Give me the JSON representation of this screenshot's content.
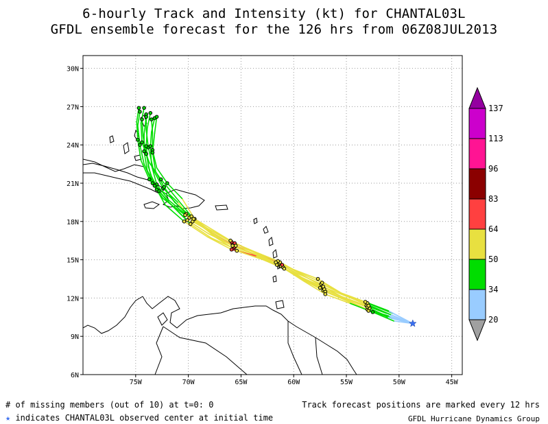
{
  "title": {
    "line1": "6-hourly Track and Intensity (kt) for CHANTAL03L",
    "line2": "GFDL ensemble forecast for the 126 hrs from 06Z08JUL2013"
  },
  "map": {
    "lon_range": [
      -80,
      -44
    ],
    "lat_range": [
      6,
      31
    ],
    "lon_ticks": [
      {
        "lon": -75,
        "label": "75W"
      },
      {
        "lon": -70,
        "label": "70W"
      },
      {
        "lon": -65,
        "label": "65W"
      },
      {
        "lon": -60,
        "label": "60W"
      },
      {
        "lon": -55,
        "label": "55W"
      },
      {
        "lon": -50,
        "label": "50W"
      },
      {
        "lon": -45,
        "label": "45W"
      }
    ],
    "lat_ticks": [
      {
        "lat": 30,
        "label": "30N"
      },
      {
        "lat": 27,
        "label": "27N"
      },
      {
        "lat": 24,
        "label": "24N"
      },
      {
        "lat": 21,
        "label": "21N"
      },
      {
        "lat": 18,
        "label": "18N"
      },
      {
        "lat": 15,
        "label": "15N"
      },
      {
        "lat": 12,
        "label": "12N"
      },
      {
        "lat": 9,
        "label": "9N"
      },
      {
        "lat": 6,
        "label": "6N"
      }
    ],
    "grid": "dotted",
    "observed_center": {
      "lon": -48.7,
      "lat": 10.0,
      "marker": "blue-star-icon"
    }
  },
  "colorbar": {
    "placement": "right",
    "levels": [
      {
        "label": "20",
        "color": "#a0a0a0"
      },
      {
        "label": "34",
        "color": "#99ccff"
      },
      {
        "label": "50",
        "color": "#00dd00"
      },
      {
        "label": "64",
        "color": "#e8e040"
      },
      {
        "label": "83",
        "color": "#ff4040"
      },
      {
        "label": "96",
        "color": "#8b0000"
      },
      {
        "label": "113",
        "color": "#ff1493"
      },
      {
        "label": "137",
        "color": "#cc00cc"
      },
      {
        "label": "",
        "color": "#9400a0"
      }
    ]
  },
  "tracks": [
    {
      "member": 1,
      "points": [
        [
          -48.7,
          10.0,
          25
        ],
        [
          -50.8,
          10.7,
          40
        ],
        [
          -53.0,
          11.5,
          50
        ],
        [
          -55.2,
          12.2,
          55
        ],
        [
          -57.3,
          12.9,
          55
        ],
        [
          -59.5,
          13.7,
          55
        ],
        [
          -61.3,
          14.5,
          60
        ],
        [
          -63.3,
          15.2,
          60
        ],
        [
          -65.7,
          15.9,
          65
        ],
        [
          -67.8,
          16.7,
          55
        ],
        [
          -69.8,
          17.8,
          50
        ],
        [
          -71.5,
          19.2,
          45
        ],
        [
          -72.8,
          20.4,
          45
        ],
        [
          -73.6,
          21.7,
          45
        ],
        [
          -74.0,
          23.3,
          45
        ],
        [
          -74.3,
          24.7,
          45
        ],
        [
          -74.4,
          26.0,
          40
        ]
      ]
    },
    {
      "member": 2,
      "points": [
        [
          -48.7,
          10.0,
          25
        ],
        [
          -51.0,
          10.6,
          40
        ],
        [
          -53.0,
          11.1,
          50
        ],
        [
          -55.1,
          11.9,
          55
        ],
        [
          -57.2,
          12.6,
          60
        ],
        [
          -59.3,
          13.5,
          60
        ],
        [
          -61.2,
          14.5,
          60
        ],
        [
          -63.5,
          15.3,
          65
        ],
        [
          -65.8,
          16.2,
          70
        ],
        [
          -67.9,
          17.2,
          60
        ],
        [
          -69.6,
          18.0,
          55
        ],
        [
          -71.0,
          19.5,
          50
        ],
        [
          -72.4,
          20.6,
          45
        ],
        [
          -73.3,
          22.0,
          45
        ],
        [
          -73.8,
          23.8,
          45
        ],
        [
          -74.0,
          25.2,
          40
        ],
        [
          -74.0,
          26.4,
          35
        ]
      ]
    },
    {
      "member": 3,
      "points": [
        [
          -48.7,
          10.0,
          25
        ],
        [
          -50.9,
          10.5,
          40
        ],
        [
          -52.9,
          11.0,
          50
        ],
        [
          -55.0,
          11.8,
          55
        ],
        [
          -57.0,
          12.5,
          55
        ],
        [
          -59.1,
          13.5,
          55
        ],
        [
          -61.0,
          14.4,
          60
        ],
        [
          -63.0,
          15.2,
          60
        ],
        [
          -65.6,
          16.0,
          65
        ],
        [
          -67.7,
          17.0,
          55
        ],
        [
          -69.9,
          18.3,
          50
        ],
        [
          -71.9,
          19.7,
          45
        ],
        [
          -73.0,
          20.9,
          45
        ],
        [
          -73.5,
          22.4,
          45
        ],
        [
          -73.6,
          23.9,
          45
        ],
        [
          -73.5,
          25.0,
          40
        ],
        [
          -73.2,
          26.1,
          35
        ]
      ]
    },
    {
      "member": 4,
      "points": [
        [
          -48.7,
          10.0,
          25
        ],
        [
          -50.6,
          10.8,
          40
        ],
        [
          -53.0,
          11.6,
          50
        ],
        [
          -55.3,
          12.3,
          50
        ],
        [
          -57.4,
          13.1,
          50
        ],
        [
          -59.6,
          13.9,
          50
        ],
        [
          -61.4,
          14.7,
          55
        ],
        [
          -63.5,
          15.4,
          60
        ],
        [
          -65.8,
          16.1,
          60
        ],
        [
          -68.0,
          17.0,
          55
        ],
        [
          -70.1,
          18.1,
          50
        ],
        [
          -72.0,
          19.6,
          45
        ],
        [
          -73.4,
          21.0,
          45
        ],
        [
          -74.2,
          22.5,
          45
        ],
        [
          -74.6,
          24.0,
          40
        ],
        [
          -74.8,
          25.5,
          40
        ],
        [
          -74.6,
          26.6,
          35
        ]
      ]
    },
    {
      "member": 5,
      "points": [
        [
          -48.7,
          10.0,
          25
        ],
        [
          -51.2,
          10.8,
          40
        ],
        [
          -53.1,
          11.4,
          50
        ],
        [
          -55.4,
          12.1,
          55
        ],
        [
          -57.5,
          12.8,
          55
        ],
        [
          -59.8,
          13.8,
          60
        ],
        [
          -61.6,
          14.6,
          60
        ],
        [
          -63.6,
          15.3,
          65
        ],
        [
          -65.9,
          15.8,
          65
        ],
        [
          -68.2,
          16.8,
          55
        ],
        [
          -70.4,
          18.0,
          50
        ],
        [
          -72.2,
          19.3,
          45
        ],
        [
          -73.0,
          20.5,
          45
        ],
        [
          -73.9,
          22.0,
          45
        ],
        [
          -74.2,
          23.5,
          45
        ],
        [
          -74.2,
          24.8,
          40
        ],
        [
          -74.0,
          26.2,
          35
        ]
      ]
    },
    {
      "member": 6,
      "points": [
        [
          -48.7,
          10.0,
          25
        ],
        [
          -50.7,
          10.4,
          40
        ],
        [
          -52.8,
          11.2,
          50
        ],
        [
          -54.9,
          11.9,
          55
        ],
        [
          -57.1,
          12.7,
          60
        ],
        [
          -59.2,
          13.6,
          60
        ],
        [
          -61.1,
          14.6,
          65
        ],
        [
          -63.2,
          15.4,
          65
        ],
        [
          -65.6,
          16.3,
          65
        ],
        [
          -67.6,
          17.3,
          60
        ],
        [
          -69.4,
          18.2,
          55
        ],
        [
          -70.6,
          19.8,
          50
        ],
        [
          -72.0,
          21.0,
          45
        ],
        [
          -73.0,
          22.2,
          45
        ],
        [
          -73.4,
          23.6,
          45
        ],
        [
          -73.4,
          25.0,
          40
        ],
        [
          -73.5,
          26.0,
          35
        ]
      ]
    },
    {
      "member": 7,
      "points": [
        [
          -48.7,
          10.0,
          25
        ],
        [
          -51.1,
          10.5,
          40
        ],
        [
          -53.0,
          11.3,
          50
        ],
        [
          -55.2,
          12.0,
          55
        ],
        [
          -57.2,
          12.9,
          55
        ],
        [
          -59.4,
          13.9,
          55
        ],
        [
          -61.3,
          14.8,
          60
        ],
        [
          -63.4,
          15.5,
          60
        ],
        [
          -65.5,
          16.1,
          60
        ],
        [
          -67.7,
          17.1,
          55
        ],
        [
          -69.7,
          18.4,
          50
        ],
        [
          -71.2,
          19.9,
          45
        ],
        [
          -72.6,
          21.3,
          45
        ],
        [
          -73.7,
          22.6,
          45
        ],
        [
          -74.4,
          24.2,
          40
        ],
        [
          -74.5,
          25.7,
          40
        ],
        [
          -74.2,
          26.9,
          35
        ]
      ]
    },
    {
      "member": 8,
      "points": [
        [
          -48.7,
          10.0,
          25
        ],
        [
          -50.8,
          10.7,
          40
        ],
        [
          -52.9,
          11.4,
          50
        ],
        [
          -55.1,
          12.2,
          50
        ],
        [
          -57.3,
          13.2,
          55
        ],
        [
          -59.5,
          14.0,
          55
        ],
        [
          -61.5,
          14.9,
          60
        ],
        [
          -63.6,
          15.6,
          60
        ],
        [
          -65.9,
          16.4,
          65
        ],
        [
          -68.1,
          17.4,
          55
        ],
        [
          -70.2,
          18.6,
          50
        ],
        [
          -71.7,
          19.9,
          45
        ],
        [
          -73.2,
          20.8,
          45
        ],
        [
          -73.8,
          22.3,
          45
        ],
        [
          -74.0,
          23.9,
          45
        ],
        [
          -73.9,
          25.3,
          40
        ],
        [
          -73.6,
          26.5,
          35
        ]
      ]
    },
    {
      "member": 9,
      "points": [
        [
          -48.7,
          10.0,
          25
        ],
        [
          -50.5,
          10.2,
          30
        ],
        [
          -52.5,
          10.9,
          45
        ],
        [
          -54.7,
          11.6,
          50
        ],
        [
          -57.0,
          12.3,
          55
        ],
        [
          -59.0,
          13.3,
          55
        ],
        [
          -60.9,
          14.3,
          60
        ],
        [
          -62.9,
          15.0,
          60
        ],
        [
          -65.4,
          15.7,
          60
        ],
        [
          -67.5,
          16.8,
          55
        ],
        [
          -69.5,
          18.2,
          50
        ],
        [
          -71.3,
          19.5,
          45
        ],
        [
          -72.3,
          20.7,
          45
        ],
        [
          -73.1,
          21.9,
          40
        ],
        [
          -73.4,
          23.4,
          40
        ],
        [
          -73.2,
          24.9,
          35
        ],
        [
          -73.0,
          26.2,
          35
        ]
      ]
    },
    {
      "member": 10,
      "points": [
        [
          -48.7,
          10.0,
          25
        ],
        [
          -51.0,
          11.0,
          35
        ],
        [
          -53.2,
          11.7,
          50
        ],
        [
          -55.5,
          12.4,
          50
        ],
        [
          -57.7,
          13.5,
          50
        ],
        [
          -59.9,
          14.2,
          55
        ],
        [
          -61.7,
          14.8,
          55
        ],
        [
          -63.8,
          15.6,
          60
        ],
        [
          -66.0,
          16.5,
          60
        ],
        [
          -68.3,
          17.5,
          55
        ],
        [
          -70.3,
          18.5,
          50
        ],
        [
          -72.4,
          19.8,
          45
        ],
        [
          -73.7,
          21.3,
          45
        ],
        [
          -74.5,
          22.8,
          40
        ],
        [
          -74.8,
          24.4,
          40
        ],
        [
          -74.9,
          25.8,
          35
        ],
        [
          -74.7,
          26.9,
          35
        ]
      ]
    }
  ],
  "footer": {
    "missing_members": "# of missing members (out of 10) at t=0: 0",
    "observed_star": "★",
    "observed_text": " indicates CHANTAL03L observed center at initial time",
    "positions_note": "Track forecast positions are marked every 12 hrs",
    "group": "GFDL Hurricane Dynamics Group"
  }
}
